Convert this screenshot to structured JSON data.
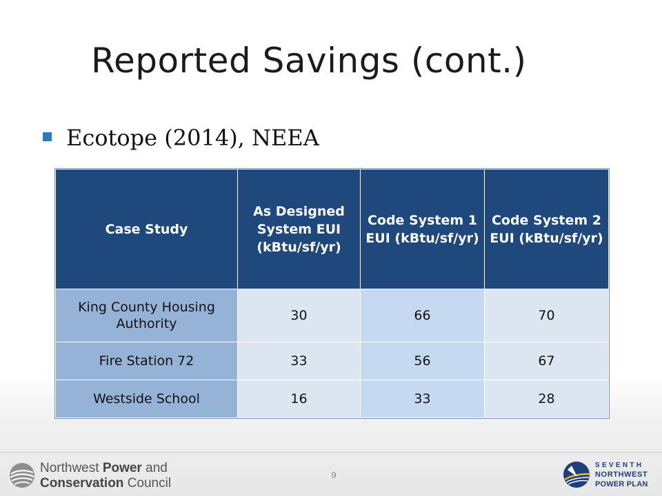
{
  "slide": {
    "title": "Reported Savings (cont.)",
    "bullet": "Ecotope (2014), NEEA",
    "page_number": "9"
  },
  "table": {
    "headers": [
      "Case Study",
      "As Designed System EUI (kBtu/sf/yr)",
      "Code System 1 EUI (kBtu/sf/yr)",
      "Code System 2 EUI (kBtu/sf/yr)"
    ],
    "rows": [
      [
        "King County Housing Authority",
        "30",
        "66",
        "70"
      ],
      [
        "Fire Station 72",
        "33",
        "56",
        "67"
      ],
      [
        "Westside School",
        "16",
        "33",
        "28"
      ]
    ]
  },
  "footer": {
    "left_logo": {
      "line1_regular": "Northwest ",
      "line1_bold": "Power",
      "line1_tail": " and",
      "line2_bold": "Conservation",
      "line2_tail": " Council",
      "icon": "council-swirl-icon"
    },
    "right_logo": {
      "line1": "SEVENTH",
      "line2": "NORTHWEST",
      "line3": "POWER PLAN",
      "icon": "power-plan-emblem-icon"
    }
  },
  "colors": {
    "header_bg": "#1f497d",
    "rowhead_bg": "#95b3d7",
    "cell_light": "#dce6f1",
    "cell_mid": "#c5d9f1",
    "bullet": "#2c7ab8",
    "logo_blue": "#1f3e7c"
  }
}
